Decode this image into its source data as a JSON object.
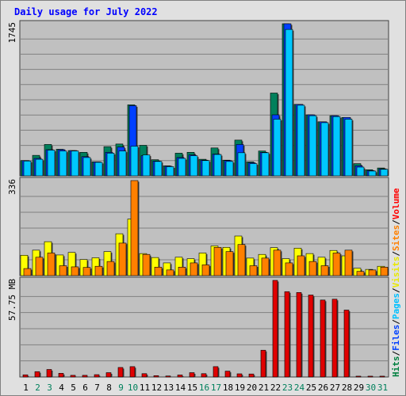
{
  "chart_data": {
    "type": "bar",
    "title": "Daily usage for July 2022",
    "categories": [
      "1",
      "2",
      "3",
      "4",
      "5",
      "6",
      "7",
      "8",
      "9",
      "10",
      "11",
      "12",
      "13",
      "14",
      "15",
      "16",
      "17",
      "18",
      "19",
      "20",
      "21",
      "22",
      "23",
      "24",
      "25",
      "26",
      "27",
      "28",
      "29",
      "30",
      "31"
    ],
    "weekend_days": [
      "2",
      "3",
      "9",
      "10",
      "16",
      "17",
      "23",
      "24",
      "30",
      "31"
    ],
    "top_panel": {
      "max_label": "1745",
      "max": 1745,
      "series": [
        {
          "name": "Hits",
          "values": [
            175,
            235,
            360,
            305,
            290,
            270,
            160,
            335,
            365,
            815,
            350,
            185,
            115,
            260,
            270,
            190,
            320,
            180,
            410,
            160,
            285,
            950,
            1745,
            820,
            700,
            620,
            690,
            670,
            140,
            70,
            90
          ]
        },
        {
          "name": "Files",
          "values": [
            175,
            200,
            300,
            300,
            290,
            220,
            160,
            270,
            330,
            805,
            230,
            170,
            110,
            210,
            240,
            180,
            250,
            175,
            360,
            150,
            270,
            700,
            1745,
            820,
            700,
            620,
            690,
            670,
            115,
            60,
            80
          ]
        },
        {
          "name": "Pages",
          "values": [
            170,
            190,
            295,
            285,
            285,
            210,
            155,
            260,
            285,
            340,
            240,
            165,
            105,
            200,
            230,
            175,
            245,
            165,
            265,
            140,
            265,
            650,
            1680,
            810,
            690,
            610,
            680,
            650,
            100,
            55,
            75
          ]
        }
      ]
    },
    "middle_panel": {
      "max_label": "336",
      "max": 336,
      "series": [
        {
          "name": "Visits",
          "values": [
            72,
            90,
            120,
            73,
            82,
            57,
            63,
            85,
            148,
            200,
            78,
            64,
            45,
            65,
            60,
            80,
            105,
            100,
            140,
            62,
            75,
            99,
            60,
            97,
            78,
            65,
            89,
            70,
            26,
            22,
            33
          ]
        },
        {
          "name": "Sites",
          "values": [
            25,
            65,
            80,
            35,
            31,
            29,
            33,
            50,
            115,
            336,
            75,
            30,
            20,
            30,
            45,
            38,
            100,
            85,
            110,
            35,
            62,
            90,
            45,
            70,
            50,
            35,
            80,
            90,
            15,
            20,
            30
          ]
        }
      ]
    },
    "bottom_panel": {
      "max_label": "57.75 MB",
      "max": 57.75,
      "unit": "MB",
      "series": [
        {
          "name": "Volume",
          "values": [
            1.3,
            3.2,
            4.5,
            2.2,
            1.0,
            1.0,
            1.4,
            2.6,
            5.7,
            6.2,
            2.0,
            0.8,
            0.6,
            1.2,
            2.6,
            2.0,
            6.2,
            3.5,
            1.9,
            1.8,
            16.0,
            57.75,
            51.0,
            50.5,
            49.0,
            46.0,
            46.5,
            40.0,
            0.5,
            0.5,
            0.5
          ]
        }
      ]
    },
    "legend": [
      {
        "label": "Hits",
        "color": "#008040"
      },
      {
        "label": "/",
        "color": "#000000"
      },
      {
        "label": "Files",
        "color": "#0040ff"
      },
      {
        "label": "/",
        "color": "#000000"
      },
      {
        "label": "Pages",
        "color": "#00c0ff"
      },
      {
        "label": "/",
        "color": "#000000"
      },
      {
        "label": "Visits",
        "color": "#e8e800"
      },
      {
        "label": "/",
        "color": "#000000"
      },
      {
        "label": "Sites",
        "color": "#ff8000"
      },
      {
        "label": "/",
        "color": "#000000"
      },
      {
        "label": "Volume",
        "color": "#ff0000"
      }
    ],
    "colors": {
      "Hits": "#00805c",
      "Files": "#0040ff",
      "Pages": "#00c8ff",
      "Visits": "#ffff00",
      "Sites": "#ff8000",
      "Volume": "#e00000",
      "panel_bg": "#c0c0c0",
      "frame_bg": "#e0e0e0",
      "title": "#0000ff",
      "weekday_label": "#000000",
      "weekend_label": "#00805c"
    },
    "grid": true,
    "legend_position": "right-vertical"
  }
}
